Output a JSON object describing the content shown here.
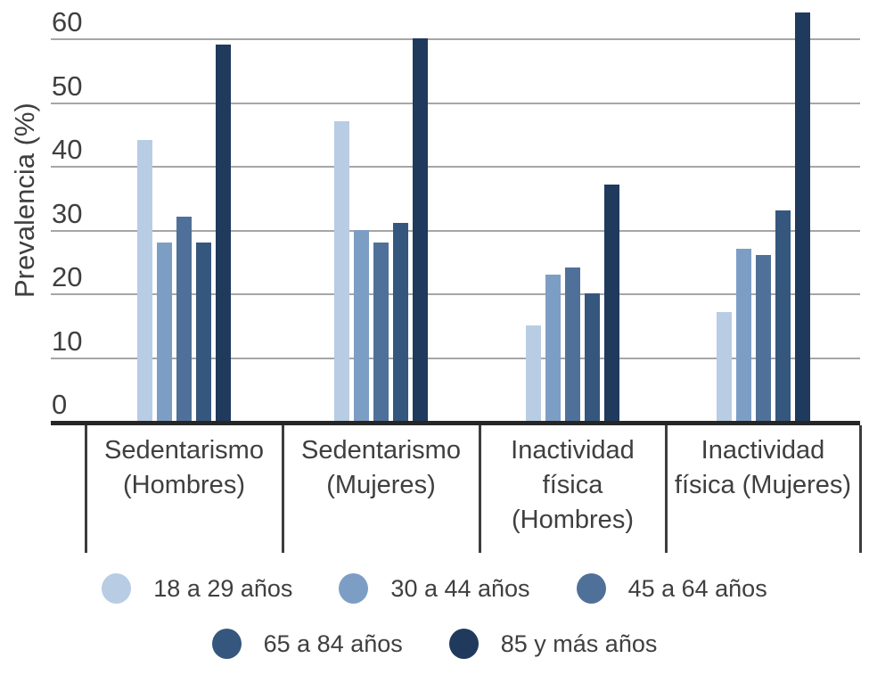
{
  "colors": {
    "background": "#ffffff",
    "gridline": "#a6a6a6",
    "axis_line": "#262626",
    "divider": "#3d3d3d",
    "text": "#3f3f3f"
  },
  "chart_data": {
    "type": "bar",
    "ylabel": "Prevalencia (%)",
    "ylim": [
      0,
      60
    ],
    "yticks": [
      0,
      10,
      20,
      30,
      40,
      50,
      60
    ],
    "grid": "horizontal",
    "legend_position": "bottom",
    "categories": [
      "Sedentarismo (Hombres)",
      "Sedentarismo (Mujeres)",
      "Inactividad física (Hombres)",
      "Inactividad física (Mujeres)"
    ],
    "category_lines": [
      [
        "Sedentarismo",
        "(Hombres)"
      ],
      [
        "Sedentarismo",
        "(Mujeres)"
      ],
      [
        "Inactividad",
        "física",
        "(Hombres)"
      ],
      [
        "Inactividad",
        "física (Mujeres)"
      ]
    ],
    "series": [
      {
        "name": "18 a 29 años",
        "color": "#b8cce4",
        "values": [
          44,
          47,
          15,
          17
        ]
      },
      {
        "name": "30 a 44 años",
        "color": "#7d9ec4",
        "values": [
          28,
          30,
          23,
          27
        ]
      },
      {
        "name": "45 a 64 años",
        "color": "#4f7199",
        "values": [
          32,
          28,
          24,
          26
        ]
      },
      {
        "name": "65 a 84 años",
        "color": "#35577e",
        "values": [
          28,
          31,
          20,
          33
        ]
      },
      {
        "name": "85 y más años",
        "color": "#1f3a5c",
        "values": [
          59,
          60,
          37,
          64
        ]
      }
    ],
    "legend_rows": [
      [
        0,
        1,
        2
      ],
      [
        3,
        4
      ]
    ]
  }
}
